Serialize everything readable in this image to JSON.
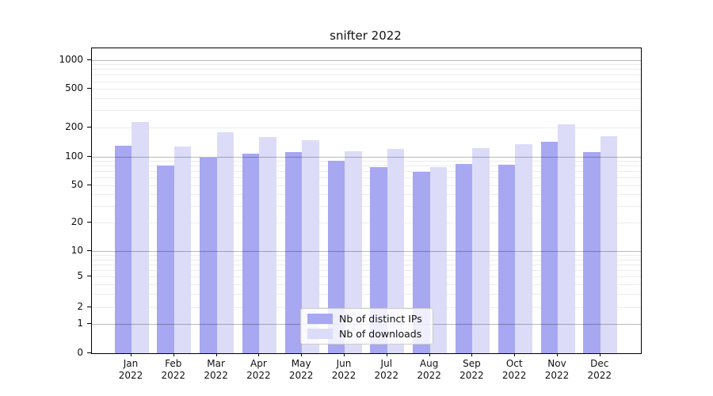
{
  "title": "snifter 2022",
  "legend": {
    "entries": [
      {
        "label": "Nb of distinct IPs",
        "color": "#a7a7f2"
      },
      {
        "label": "Nb of downloads",
        "color": "#dcdcf8"
      }
    ],
    "position": "lower center"
  },
  "colors": {
    "distinct_ips_bar": "#a7a7f2",
    "downloads_bar": "#dcdcf8",
    "major_grid": "#bababa",
    "minor_grid": "#ebebeb",
    "axis": "#000000",
    "text": "#111111"
  },
  "chart_data": {
    "type": "bar",
    "title": "snifter 2022",
    "categories": [
      "Jan 2022",
      "Feb 2022",
      "Mar 2022",
      "Apr 2022",
      "May 2022",
      "Jun 2022",
      "Jul 2022",
      "Aug 2022",
      "Sep 2022",
      "Oct 2022",
      "Nov 2022",
      "Dec 2022"
    ],
    "series": [
      {
        "name": "Nb of distinct IPs",
        "color": "#a7a7f2",
        "values": [
          130,
          81,
          97,
          108,
          112,
          91,
          77,
          69,
          84,
          82,
          143,
          111
        ]
      },
      {
        "name": "Nb of downloads",
        "color": "#dcdcf8",
        "values": [
          226,
          128,
          177,
          160,
          147,
          113,
          119,
          77,
          122,
          135,
          215,
          162
        ]
      }
    ],
    "xlabel": "",
    "ylabel": "",
    "yscale": "symlog",
    "yticks": [
      0,
      1,
      2,
      5,
      10,
      20,
      50,
      100,
      200,
      500,
      1000
    ],
    "minor_yticks": [
      2,
      3,
      4,
      5,
      6,
      7,
      8,
      9,
      20,
      30,
      40,
      50,
      60,
      70,
      80,
      90,
      200,
      300,
      400,
      500,
      600,
      700,
      800,
      900
    ],
    "major_grid_yticks": [
      1,
      10,
      100,
      1000
    ],
    "ylim": [
      0,
      1300
    ],
    "grid": true,
    "legend_position": "lower center"
  }
}
